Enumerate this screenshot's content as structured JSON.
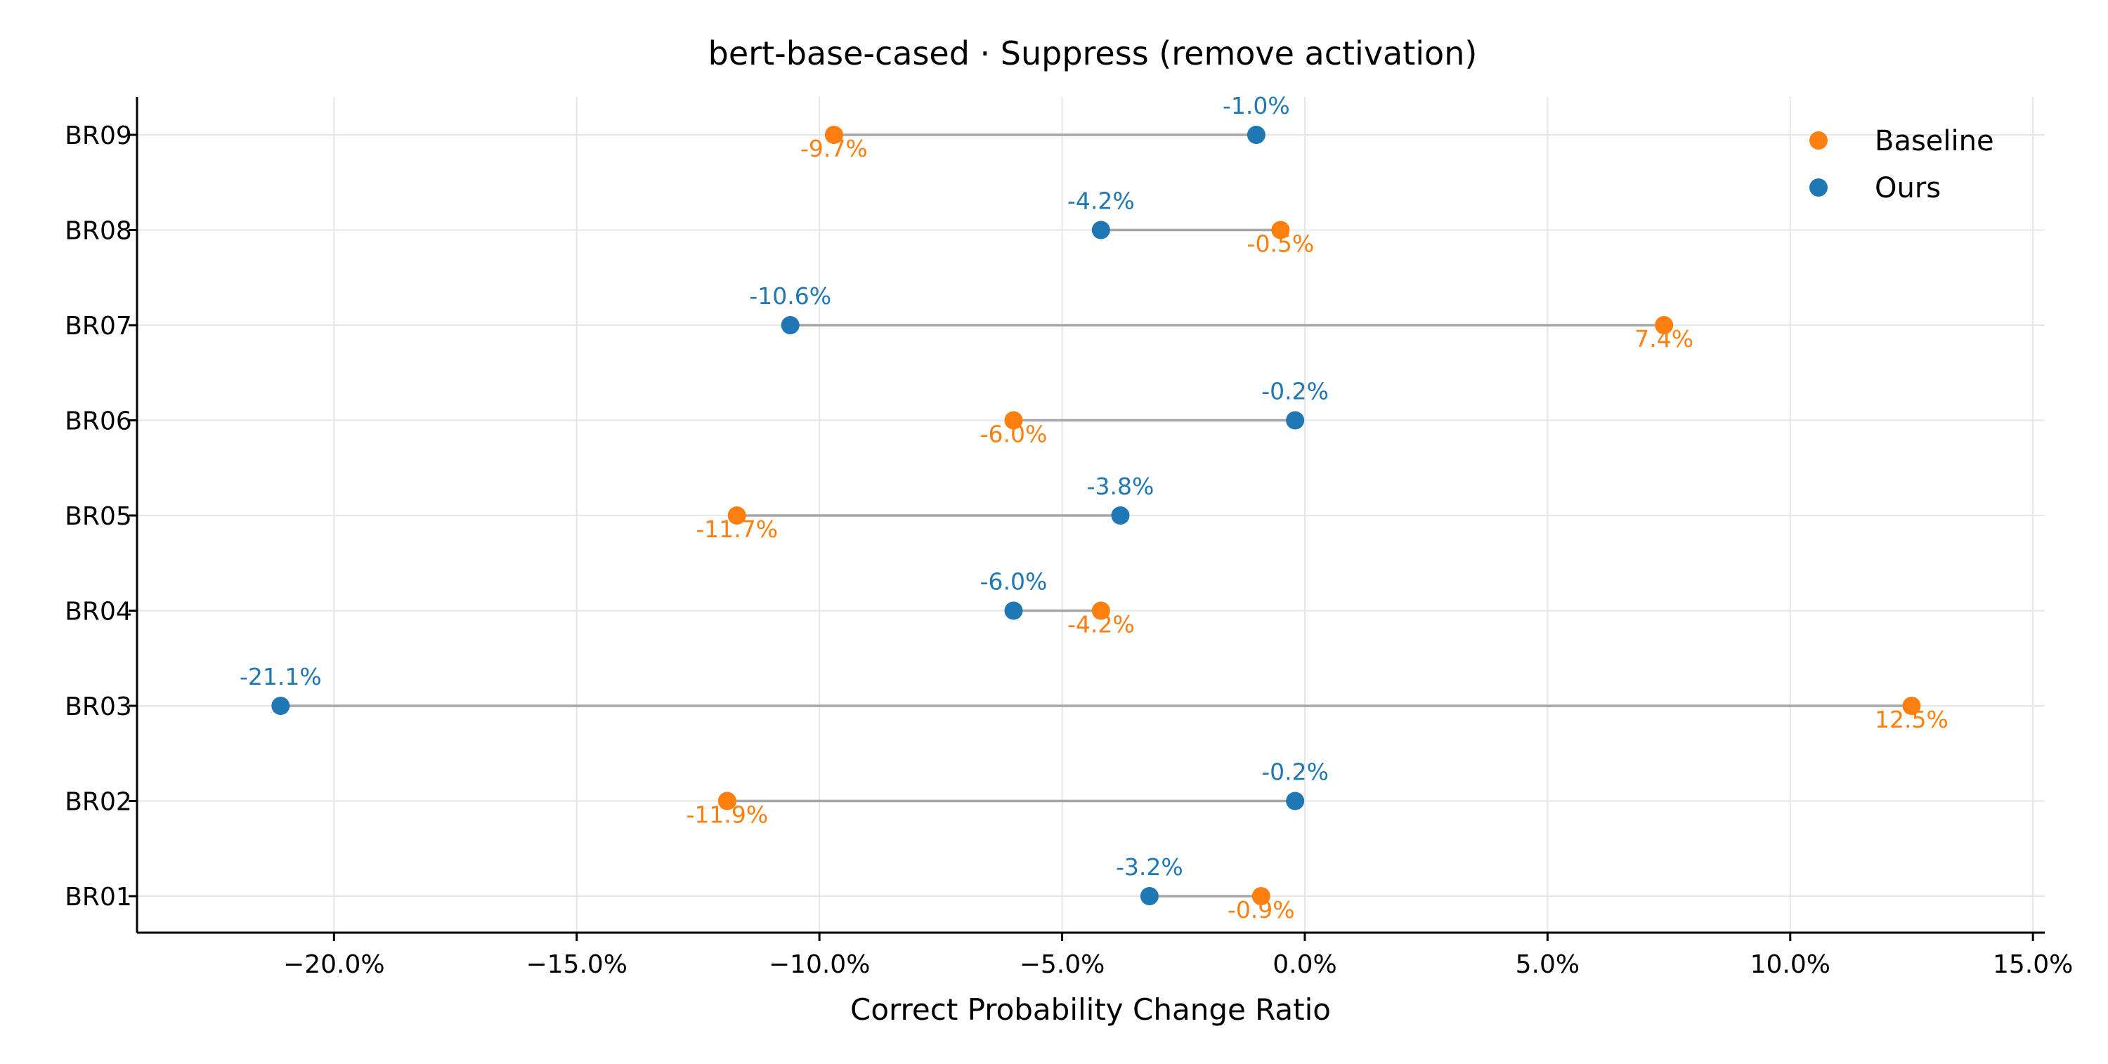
{
  "chart_data": {
    "type": "scatter",
    "style": "dumbbell",
    "title": "bert-base-cased · Suppress (remove activation)",
    "xlabel": "Correct Probability Change Ratio",
    "ylabel": "",
    "xlim": [
      -24.0,
      15.2
    ],
    "x_ticks": [
      -20,
      -15,
      -10,
      -5,
      0,
      5,
      10,
      15
    ],
    "x_tick_labels": [
      "−20.0%",
      "−15.0%",
      "−10.0%",
      "−5.0%",
      "0.0%",
      "5.0%",
      "10.0%",
      "15.0%"
    ],
    "categories": [
      "BR09",
      "BR08",
      "BR07",
      "BR06",
      "BR05",
      "BR04",
      "BR03",
      "BR02",
      "BR01"
    ],
    "grid": true,
    "legend": {
      "position": "top-right"
    },
    "series": [
      {
        "name": "Baseline",
        "color": "#ff7f0e",
        "values": [
          -9.7,
          -0.5,
          7.4,
          -6.0,
          -11.7,
          -4.2,
          12.5,
          -11.9,
          -0.9
        ],
        "labels": [
          "-9.7%",
          "-0.5%",
          "7.4%",
          "-6.0%",
          "-11.7%",
          "-4.2%",
          "12.5%",
          "-11.9%",
          "-0.9%"
        ]
      },
      {
        "name": "Ours",
        "color": "#1f77b4",
        "values": [
          -1.0,
          -4.2,
          -10.6,
          -0.2,
          -3.8,
          -6.0,
          -21.1,
          -0.2,
          -3.2
        ],
        "labels": [
          "-1.0%",
          "-4.2%",
          "-10.6%",
          "-0.2%",
          "-3.8%",
          "-6.0%",
          "-21.1%",
          "-0.2%",
          "-3.2%"
        ]
      }
    ],
    "connector_color": "#a6a6a6",
    "grid_color": "#e6e6e6"
  }
}
